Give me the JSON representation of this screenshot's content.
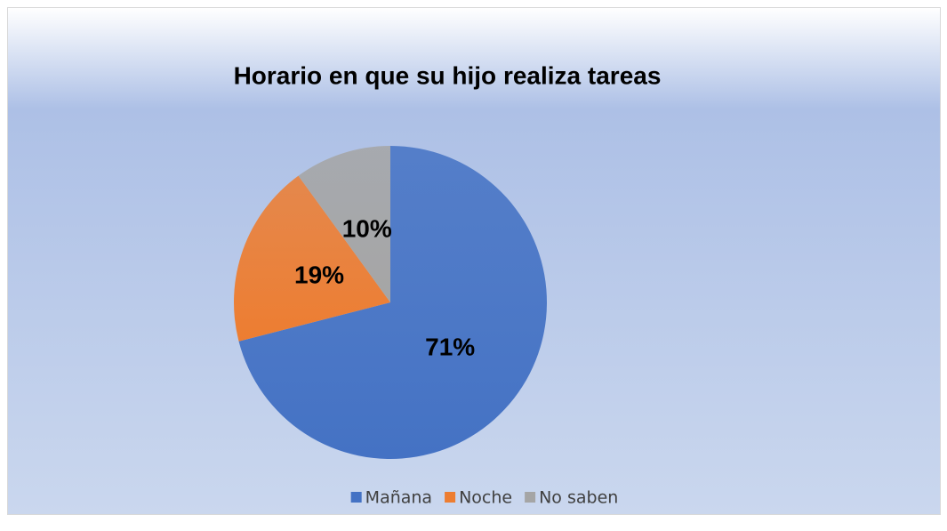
{
  "chart_data": {
    "type": "pie",
    "title": "Horario en que su hijo realiza tareas",
    "categories": [
      "Mañana",
      "Noche",
      "No saben"
    ],
    "values": [
      71,
      19,
      10
    ],
    "value_labels": [
      "71%",
      "19%",
      "10%"
    ],
    "colors": [
      "#4472c4",
      "#ed7d31",
      "#a5a5a5"
    ],
    "legend": "bottom"
  }
}
